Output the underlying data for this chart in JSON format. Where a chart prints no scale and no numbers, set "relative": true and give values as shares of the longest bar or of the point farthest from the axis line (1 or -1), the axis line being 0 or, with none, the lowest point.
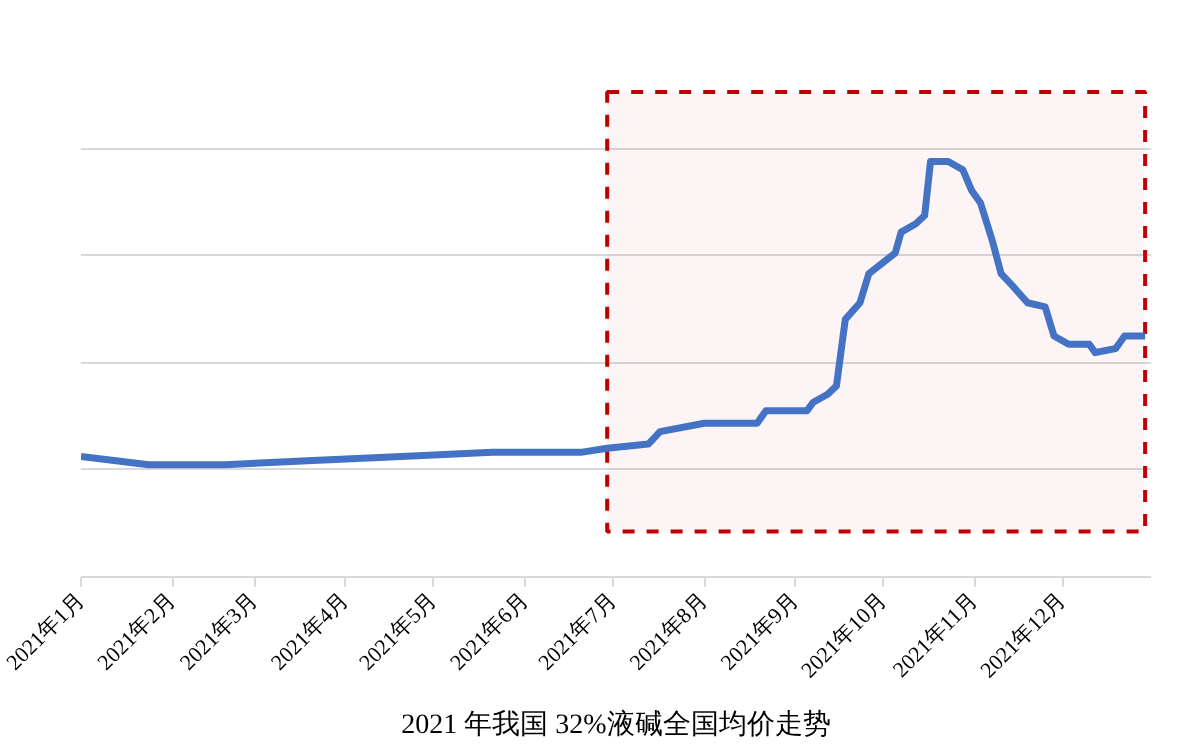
{
  "chart_data": {
    "type": "line",
    "title": "2021 年我国 32%液碱全国均价走势",
    "relative": true,
    "grid": "y",
    "marker": "none",
    "line_style": "solid",
    "x": [
      "2021-01-01",
      "2021-01-24",
      "2021-02-19",
      "2021-03-19",
      "2021-04-20",
      "2021-05-21",
      "2021-06-20",
      "2021-06-29",
      "2021-07-13",
      "2021-07-17",
      "2021-08-01",
      "2021-08-19",
      "2021-08-22",
      "2021-09-05",
      "2021-09-07",
      "2021-09-12",
      "2021-09-15",
      "2021-09-18",
      "2021-09-23",
      "2021-09-26",
      "2021-10-05",
      "2021-10-07",
      "2021-10-12",
      "2021-10-15",
      "2021-10-17",
      "2021-10-23",
      "2021-10-28",
      "2021-10-31",
      "2021-11-03",
      "2021-11-07",
      "2021-11-10",
      "2021-11-14",
      "2021-11-19",
      "2021-11-25",
      "2021-11-28",
      "2021-12-03",
      "2021-12-10",
      "2021-12-12",
      "2021-12-19",
      "2021-12-22",
      "2021-12-29"
    ],
    "series": [
      {
        "color": "#4472c4",
        "values": [
          0.29,
          0.27,
          0.27,
          0.28,
          0.29,
          0.3,
          0.3,
          0.31,
          0.32,
          0.35,
          0.37,
          0.37,
          0.4,
          0.4,
          0.42,
          0.44,
          0.46,
          0.62,
          0.66,
          0.73,
          0.78,
          0.83,
          0.85,
          0.87,
          1.0,
          1.0,
          0.98,
          0.93,
          0.9,
          0.81,
          0.73,
          0.7,
          0.66,
          0.65,
          0.58,
          0.56,
          0.56,
          0.54,
          0.55,
          0.58,
          0.58
        ]
      }
    ],
    "xlim": [
      "2021-01-01",
      "2021-12-31"
    ],
    "xticks": [
      {
        "value": "2021-01-01",
        "label": "2021年1月"
      },
      {
        "value": "2021-02-01",
        "label": "2021年2月"
      },
      {
        "value": "2021-03-01",
        "label": "2021年3月"
      },
      {
        "value": "2021-04-01",
        "label": "2021年4月"
      },
      {
        "value": "2021-05-01",
        "label": "2021年5月"
      },
      {
        "value": "2021-06-01",
        "label": "2021年6月"
      },
      {
        "value": "2021-07-01",
        "label": "2021年7月"
      },
      {
        "value": "2021-08-01",
        "label": "2021年8月"
      },
      {
        "value": "2021-09-01",
        "label": "2021年9月"
      },
      {
        "value": "2021-10-01",
        "label": "2021年10月"
      },
      {
        "value": "2021-11-01",
        "label": "2021年11月"
      },
      {
        "value": "2021-12-01",
        "label": "2021年12月"
      }
    ],
    "bands": [
      {
        "axis": "x",
        "from": "2021-06-29",
        "to": "2021-12-29",
        "color": "#c00000"
      }
    ]
  }
}
